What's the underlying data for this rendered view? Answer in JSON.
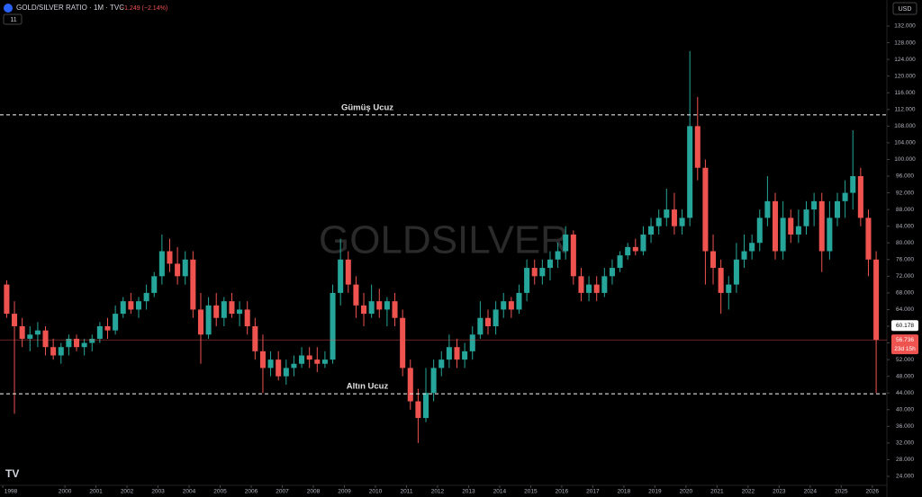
{
  "chart_data": {
    "type": "candlestick",
    "title": "GOLD/SILVER RATIO · 1M · TVC",
    "change": "−1.249 (−2.14%)",
    "interval_badge": "11",
    "currency": "USD",
    "watermark": "GOLDSILVER",
    "up_color": "#26a69a",
    "down_color": "#ef5350",
    "x": [
      1998.125,
      1998.375,
      1998.625,
      1998.875,
      1999.125,
      1999.375,
      1999.625,
      1999.875,
      2000.125,
      2000.375,
      2000.625,
      2000.875,
      2001.125,
      2001.375,
      2001.625,
      2001.875,
      2002.125,
      2002.375,
      2002.625,
      2002.875,
      2003.125,
      2003.375,
      2003.625,
      2003.875,
      2004.125,
      2004.375,
      2004.625,
      2004.875,
      2005.125,
      2005.375,
      2005.625,
      2005.875,
      2006.125,
      2006.375,
      2006.625,
      2006.875,
      2007.125,
      2007.375,
      2007.625,
      2007.875,
      2008.125,
      2008.375,
      2008.625,
      2008.875,
      2009.125,
      2009.375,
      2009.625,
      2009.875,
      2010.125,
      2010.375,
      2010.625,
      2010.875,
      2011.125,
      2011.375,
      2011.625,
      2011.875,
      2012.125,
      2012.375,
      2012.625,
      2012.875,
      2013.125,
      2013.375,
      2013.625,
      2013.875,
      2014.125,
      2014.375,
      2014.625,
      2014.875,
      2015.125,
      2015.375,
      2015.625,
      2015.875,
      2016.125,
      2016.375,
      2016.625,
      2016.875,
      2017.125,
      2017.375,
      2017.625,
      2017.875,
      2018.125,
      2018.375,
      2018.625,
      2018.875,
      2019.125,
      2019.375,
      2019.625,
      2019.875,
      2020.125,
      2020.375,
      2020.625,
      2020.875,
      2021.125,
      2021.375,
      2021.625,
      2021.875,
      2022.125,
      2022.375,
      2022.625,
      2022.875,
      2023.125,
      2023.375,
      2023.625,
      2023.875,
      2024.125,
      2024.375,
      2024.625,
      2024.875,
      2025.125,
      2025.375,
      2025.625,
      2025.875,
      2026.125
    ],
    "open": [
      70,
      63,
      60,
      57,
      58,
      59,
      55,
      53,
      55,
      57,
      55,
      56,
      57,
      60,
      59,
      63,
      66,
      64,
      66,
      68,
      72,
      78,
      75,
      72,
      76,
      64,
      58,
      65,
      62,
      66,
      63,
      64,
      60,
      54,
      50,
      52,
      48,
      50,
      51,
      53,
      52,
      51,
      52,
      68,
      76,
      70,
      65,
      63,
      66,
      64,
      66,
      62,
      50,
      42,
      38,
      44,
      50,
      52,
      55,
      52,
      54,
      58,
      62,
      60,
      64,
      66,
      64,
      68,
      74,
      72,
      74,
      76,
      78,
      82,
      72,
      68,
      70,
      68,
      72,
      74,
      77,
      79,
      78,
      82,
      84,
      86,
      88,
      84,
      86,
      108,
      98,
      78,
      74,
      68,
      70,
      76,
      78,
      80,
      86,
      90,
      78,
      86,
      82,
      84,
      88,
      90,
      78,
      86,
      90,
      92,
      96,
      86,
      76
    ],
    "high": [
      71,
      66,
      62,
      60,
      61,
      60,
      57,
      56,
      58,
      58,
      57,
      58,
      61,
      62,
      65,
      67,
      68,
      67,
      70,
      73,
      82,
      81,
      79,
      78,
      78,
      68,
      67,
      68,
      67,
      68,
      66,
      66,
      62,
      58,
      54,
      54,
      52,
      53,
      55,
      55,
      55,
      54,
      70,
      81,
      78,
      72,
      68,
      70,
      69,
      67,
      68,
      64,
      52,
      45,
      50,
      52,
      54,
      58,
      57,
      56,
      60,
      66,
      64,
      66,
      68,
      67,
      70,
      76,
      76,
      76,
      78,
      80,
      84,
      83,
      74,
      72,
      72,
      74,
      76,
      78,
      80,
      81,
      84,
      86,
      88,
      93,
      92,
      88,
      126,
      115,
      100,
      82,
      76,
      72,
      80,
      82,
      82,
      88,
      96,
      92,
      90,
      88,
      88,
      90,
      92,
      92,
      90,
      92,
      95,
      107,
      98,
      88,
      78
    ],
    "low": [
      62,
      39,
      55,
      54,
      55,
      53,
      52,
      51,
      53,
      54,
      53,
      54,
      56,
      57,
      58,
      62,
      63,
      62,
      64,
      67,
      70,
      73,
      70,
      70,
      62,
      51,
      57,
      60,
      60,
      62,
      60,
      58,
      52,
      44,
      48,
      47,
      46,
      48,
      50,
      50,
      49,
      50,
      51,
      65,
      68,
      62,
      60,
      62,
      62,
      60,
      60,
      48,
      40,
      32,
      37,
      42,
      48,
      50,
      50,
      50,
      52,
      57,
      58,
      58,
      62,
      62,
      63,
      66,
      70,
      70,
      71,
      74,
      76,
      70,
      66,
      66,
      66,
      67,
      70,
      73,
      76,
      77,
      77,
      80,
      82,
      84,
      82,
      82,
      84,
      95,
      70,
      70,
      63,
      64,
      68,
      74,
      76,
      78,
      84,
      76,
      76,
      80,
      80,
      82,
      84,
      73,
      76,
      84,
      86,
      88,
      84,
      72,
      44
    ],
    "close": [
      63,
      60,
      57,
      58,
      59,
      55,
      53,
      55,
      57,
      55,
      56,
      57,
      60,
      59,
      63,
      66,
      64,
      66,
      68,
      72,
      78,
      75,
      72,
      76,
      64,
      58,
      65,
      62,
      66,
      63,
      64,
      60,
      54,
      50,
      52,
      48,
      50,
      51,
      53,
      52,
      51,
      52,
      68,
      76,
      70,
      65,
      63,
      66,
      64,
      66,
      62,
      50,
      42,
      38,
      44,
      50,
      52,
      55,
      52,
      54,
      58,
      62,
      60,
      64,
      66,
      64,
      68,
      74,
      72,
      74,
      76,
      78,
      82,
      72,
      68,
      70,
      68,
      72,
      74,
      77,
      79,
      78,
      82,
      84,
      86,
      88,
      84,
      86,
      108,
      98,
      78,
      74,
      68,
      70,
      76,
      78,
      80,
      86,
      90,
      78,
      86,
      82,
      84,
      88,
      90,
      78,
      86,
      90,
      92,
      96,
      86,
      76,
      56.736
    ],
    "xlim": [
      1997.91,
      2026.47
    ],
    "xticks": [
      1998,
      2000,
      2001,
      2002,
      2003,
      2004,
      2005,
      2006,
      2007,
      2008,
      2009,
      2010,
      2011,
      2012,
      2013,
      2014,
      2015,
      2016,
      2017,
      2018,
      2019,
      2020,
      2021,
      2022,
      2023,
      2024,
      2025,
      2026
    ],
    "ylim": [
      21.85,
      138.25
    ],
    "yticks": [
      {
        "value": 24,
        "label": "24.000"
      },
      {
        "value": 28,
        "label": "28.000"
      },
      {
        "value": 32,
        "label": "32.000"
      },
      {
        "value": 36,
        "label": "36.000"
      },
      {
        "value": 40,
        "label": "40.000"
      },
      {
        "value": 44,
        "label": "44.000"
      },
      {
        "value": 48,
        "label": "48.000"
      },
      {
        "value": 52,
        "label": "52.000"
      },
      {
        "value": 56,
        "label": "56.000"
      },
      {
        "value": 60,
        "label": "60.000"
      },
      {
        "value": 64,
        "label": "64.000"
      },
      {
        "value": 68,
        "label": "68.000"
      },
      {
        "value": 72,
        "label": "72.000"
      },
      {
        "value": 76,
        "label": "76.000"
      },
      {
        "value": 80,
        "label": "80.000"
      },
      {
        "value": 84,
        "label": "84.000"
      },
      {
        "value": 88,
        "label": "88.000"
      },
      {
        "value": 92,
        "label": "92.000"
      },
      {
        "value": 96,
        "label": "96.000"
      },
      {
        "value": 100,
        "label": "100.000"
      },
      {
        "value": 104,
        "label": "104.000"
      },
      {
        "value": 108,
        "label": "108.000"
      },
      {
        "value": 112,
        "label": "112.000"
      },
      {
        "value": 116,
        "label": "116.000"
      },
      {
        "value": 120,
        "label": "120.000"
      },
      {
        "value": 124,
        "label": "124.000"
      },
      {
        "value": 128,
        "label": "128.000"
      },
      {
        "value": 132,
        "label": "132.000"
      }
    ],
    "levels": [
      {
        "value": 110.7,
        "label": "Gümüş Ucuz"
      },
      {
        "value": 43.8,
        "label": "Altın Ucuz"
      }
    ],
    "price_labels": [
      {
        "value": 60.178,
        "label": "60.178"
      },
      {
        "value": 56.736,
        "label": "56.736"
      }
    ],
    "countdown": "23d 15h"
  }
}
